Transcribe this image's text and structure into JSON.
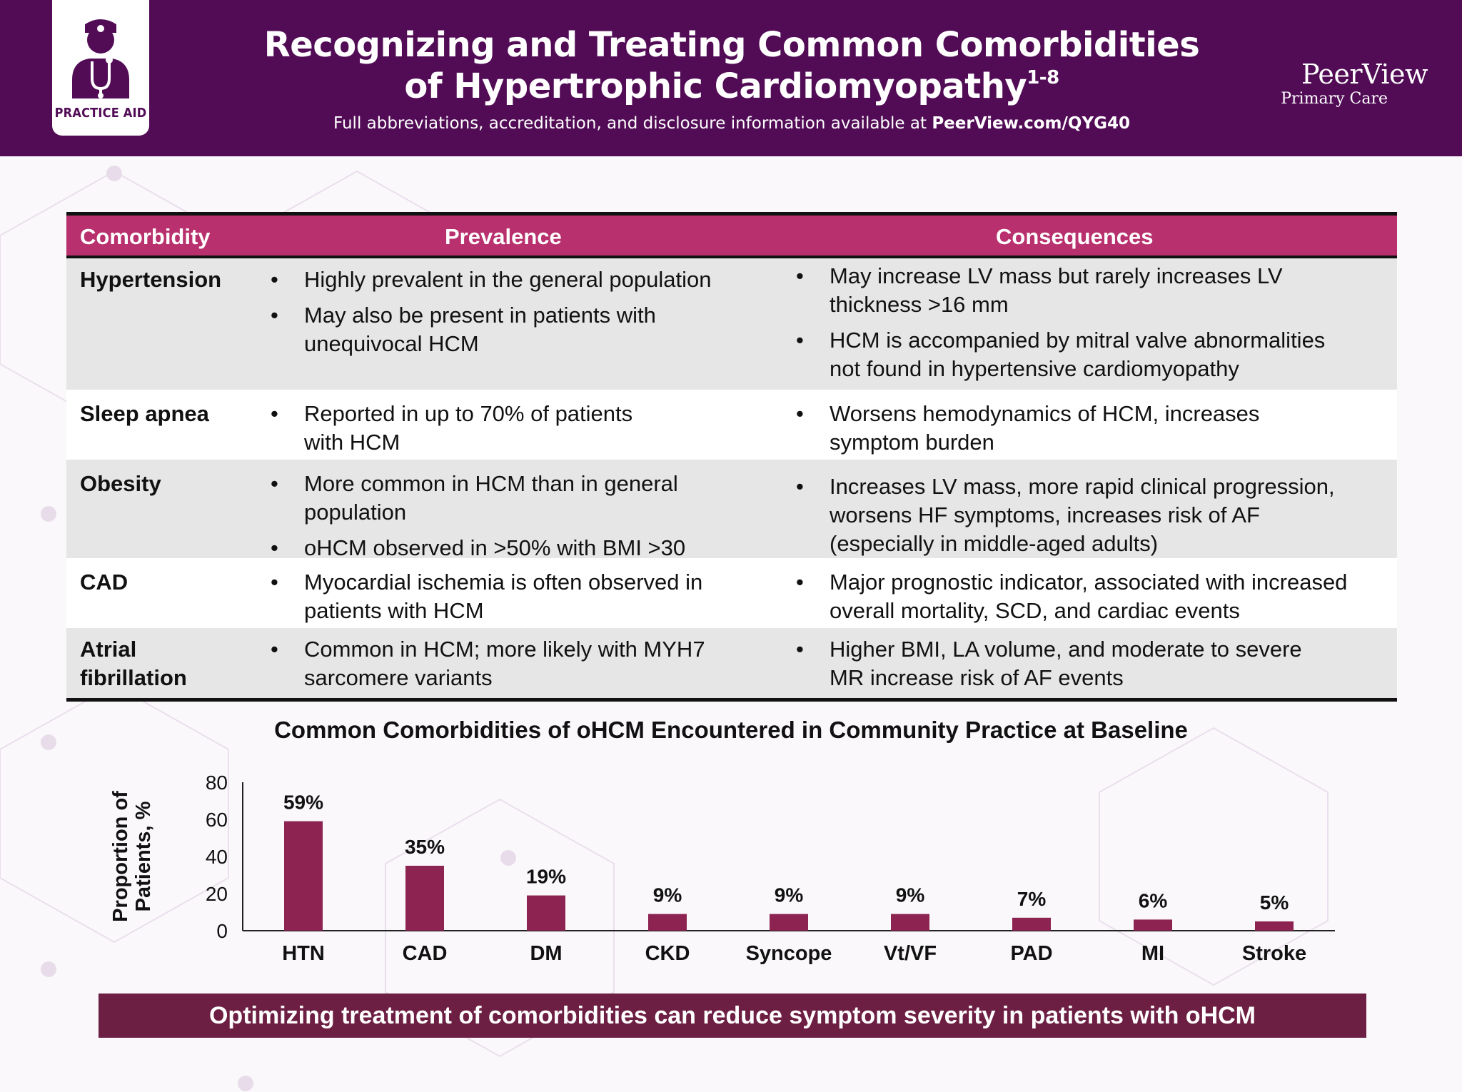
{
  "header": {
    "badge_label": "PRACTICE AID",
    "title_line1": "Recognizing and Treating Common Comorbidities",
    "title_line2": "of Hypertrophic Cardiomyopathy",
    "title_sup": "1-8",
    "subtitle_prefix": "Full abbreviations, accreditation, and disclosure information available at ",
    "subtitle_link": "PeerView.com/QYG40",
    "brand_name": "PeerView",
    "brand_sub": "Primary Care",
    "background_color": "#520c56"
  },
  "table": {
    "header_color": "#b8306d",
    "columns": [
      "Comorbidity",
      "Prevalence",
      "Consequences"
    ],
    "rows": [
      {
        "condition": [
          "Hypertension"
        ],
        "prevalence": [
          [
            "Highly prevalent in the general population"
          ],
          [
            "May also be present in patients with",
            "unequivocal HCM"
          ]
        ],
        "consequences": [
          [
            "May increase LV mass but rarely increases LV",
            "thickness >16 mm"
          ],
          [
            "HCM is accompanied by mitral valve abnormalities",
            "not found in hypertensive cardiomyopathy"
          ]
        ]
      },
      {
        "condition": [
          "Sleep apnea"
        ],
        "prevalence": [
          [
            "Reported in up to 70% of patients",
            "with HCM"
          ]
        ],
        "consequences": [
          [
            "Worsens hemodynamics of HCM, increases",
            "symptom burden"
          ]
        ]
      },
      {
        "condition": [
          "Obesity"
        ],
        "prevalence": [
          [
            "More common in HCM than in general",
            "population"
          ],
          [
            "oHCM observed in >50% with BMI >30"
          ]
        ],
        "consequences": [
          [
            "Increases LV mass, more rapid clinical progression,",
            "worsens HF symptoms, increases risk of AF",
            "(especially in middle-aged adults)"
          ]
        ]
      },
      {
        "condition": [
          "CAD"
        ],
        "prevalence": [
          [
            "Myocardial ischemia is often observed in",
            "patients with HCM"
          ]
        ],
        "consequences": [
          [
            "Major prognostic indicator, associated with increased",
            "overall mortality, SCD, and cardiac events"
          ]
        ]
      },
      {
        "condition": [
          "Atrial",
          "fibrillation"
        ],
        "prevalence": [
          [
            "Common in HCM; more likely with MYH7",
            "sarcomere variants"
          ]
        ],
        "consequences": [
          [
            "Higher BMI, LA volume, and moderate to severe",
            "MR increase risk of AF events"
          ]
        ]
      }
    ]
  },
  "chart_data": {
    "type": "bar",
    "title": "Common Comorbidities of oHCM Encountered in Community Practice at Baseline",
    "ylabel_lines": [
      "Proportion of",
      "Patients, %"
    ],
    "xlabel": "",
    "categories": [
      "HTN",
      "CAD",
      "DM",
      "CKD",
      "Syncope",
      "Vt/VF",
      "PAD",
      "MI",
      "Stroke"
    ],
    "values": [
      59,
      35,
      19,
      9,
      9,
      9,
      7,
      6,
      5
    ],
    "data_labels": [
      "59%",
      "35%",
      "19%",
      "9%",
      "9%",
      "9%",
      "7%",
      "6%",
      "5%"
    ],
    "ylim": [
      0,
      80
    ],
    "yticks": [
      "0",
      "20",
      "40",
      "60",
      "80"
    ],
    "bar_color": "#8c2350",
    "grid": false
  },
  "banner": {
    "text": "Optimizing treatment of comorbidities can reduce symptom severity in patients with oHCM",
    "color": "#6d1f43"
  }
}
